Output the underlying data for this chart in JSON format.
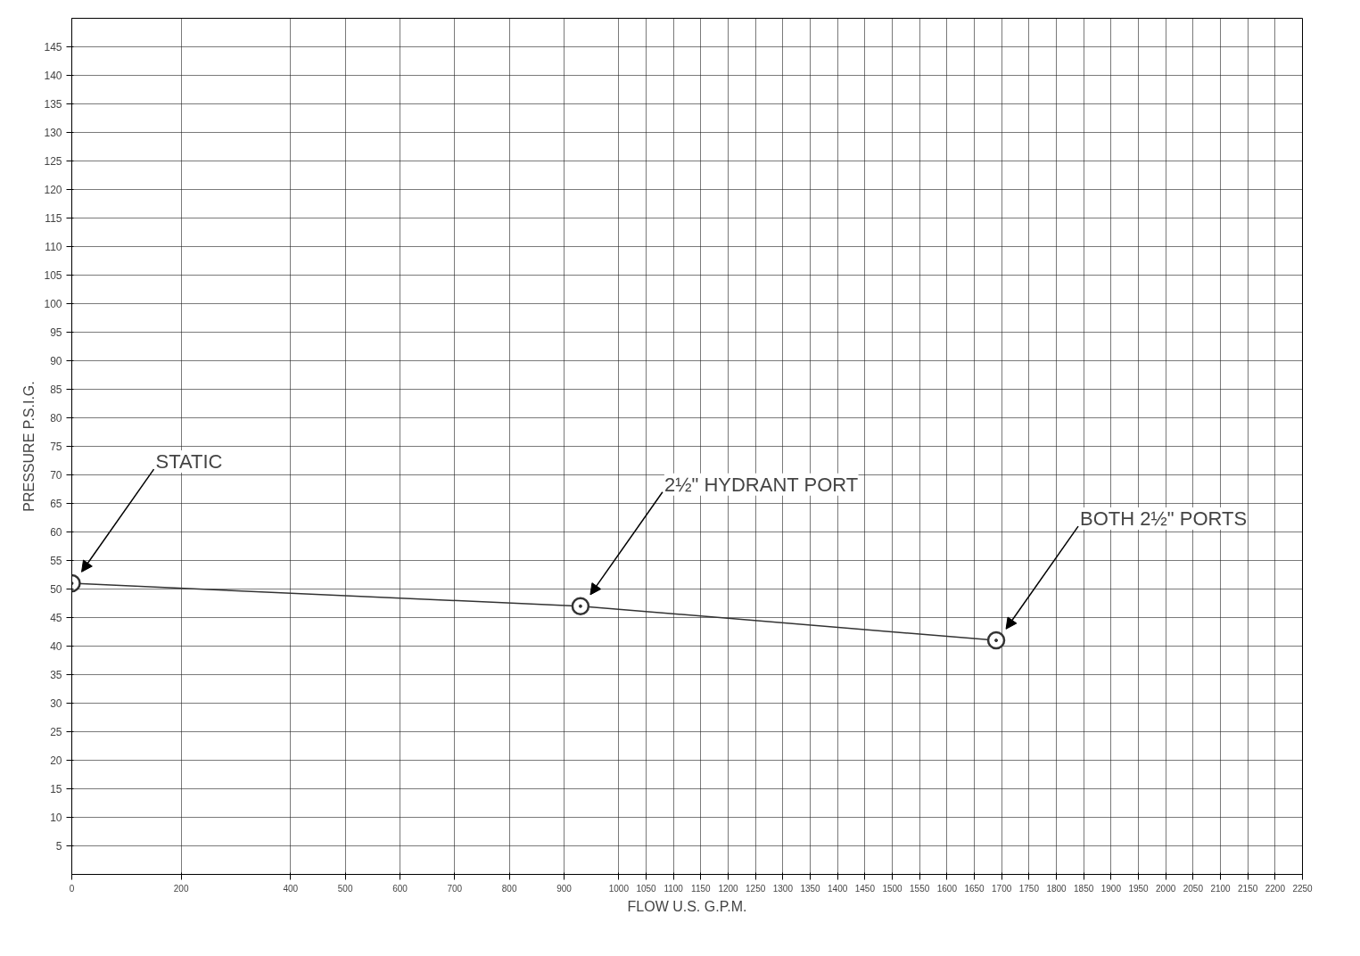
{
  "chart_data": {
    "type": "line",
    "xlabel": "FLOW U.S. G.P.M.",
    "ylabel": "PRESSURE P.S.I.G.",
    "x": [
      0,
      930,
      1690
    ],
    "values": [
      51,
      47,
      41
    ],
    "color": "#333333",
    "marker": "circle",
    "line_style": "solid",
    "grid": true,
    "xlim": [
      0,
      2250
    ],
    "ylim": [
      0,
      150
    ],
    "xticks": [
      0,
      200,
      400,
      500,
      600,
      700,
      800,
      900,
      1000,
      1050,
      1100,
      1150,
      1200,
      1250,
      1300,
      1350,
      1400,
      1450,
      1500,
      1550,
      1600,
      1650,
      1700,
      1750,
      1800,
      1850,
      1900,
      1950,
      2000,
      2050,
      2100,
      2150,
      2200,
      2250
    ],
    "yticks": [
      5,
      10,
      15,
      20,
      25,
      30,
      35,
      40,
      45,
      50,
      55,
      60,
      65,
      70,
      75,
      80,
      85,
      90,
      95,
      100,
      105,
      110,
      115,
      120,
      125,
      130,
      135,
      140,
      145
    ],
    "annotations": [
      "STATIC",
      "2½\" HYDRANT PORT",
      "BOTH 2½\" PORTS"
    ]
  }
}
